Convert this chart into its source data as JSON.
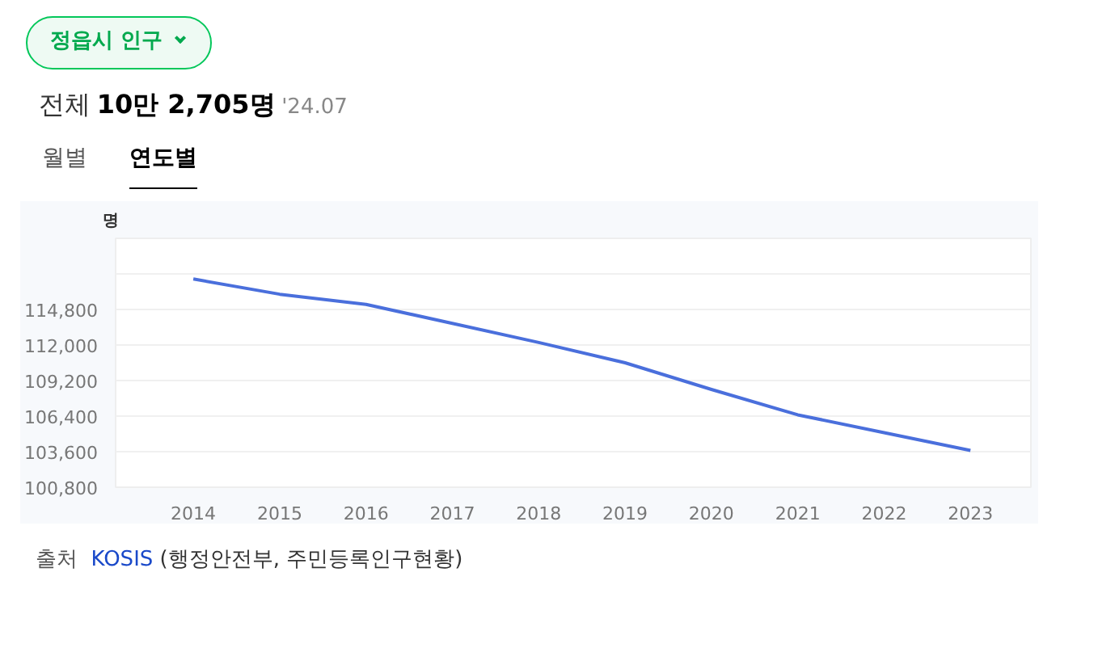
{
  "chart_data": {
    "type": "line",
    "title": "정읍시 인구",
    "subtitle": "전체 10만 2,705명 '24.07",
    "ylabel": "명",
    "annotations": [
      "월별",
      "연도별",
      "출처 KOSIS (행정안전부, 주민등록인구현황)"
    ],
    "categories": [
      "2014",
      "2015",
      "2016",
      "2017",
      "2018",
      "2019",
      "2020",
      "2021",
      "2022",
      "2023"
    ],
    "series": [
      {
        "color": "#4a6fdc",
        "values": [
          117200,
          116000,
          115200,
          113700,
          112200,
          110600,
          108500,
          106500,
          105100,
          103700
        ]
      }
    ],
    "ylim": [
      100800,
      120400
    ],
    "yticks": [
      {
        "value": 100800,
        "label": "100,800"
      },
      {
        "value": 103600,
        "label": "103,600"
      },
      {
        "value": 106400,
        "label": "106,400"
      },
      {
        "value": 109200,
        "label": "109,200"
      },
      {
        "value": 112000,
        "label": "112,000"
      },
      {
        "value": 114800,
        "label": "114,800"
      },
      {
        "value": 117600,
        "label": null
      }
    ],
    "grid": "y"
  }
}
